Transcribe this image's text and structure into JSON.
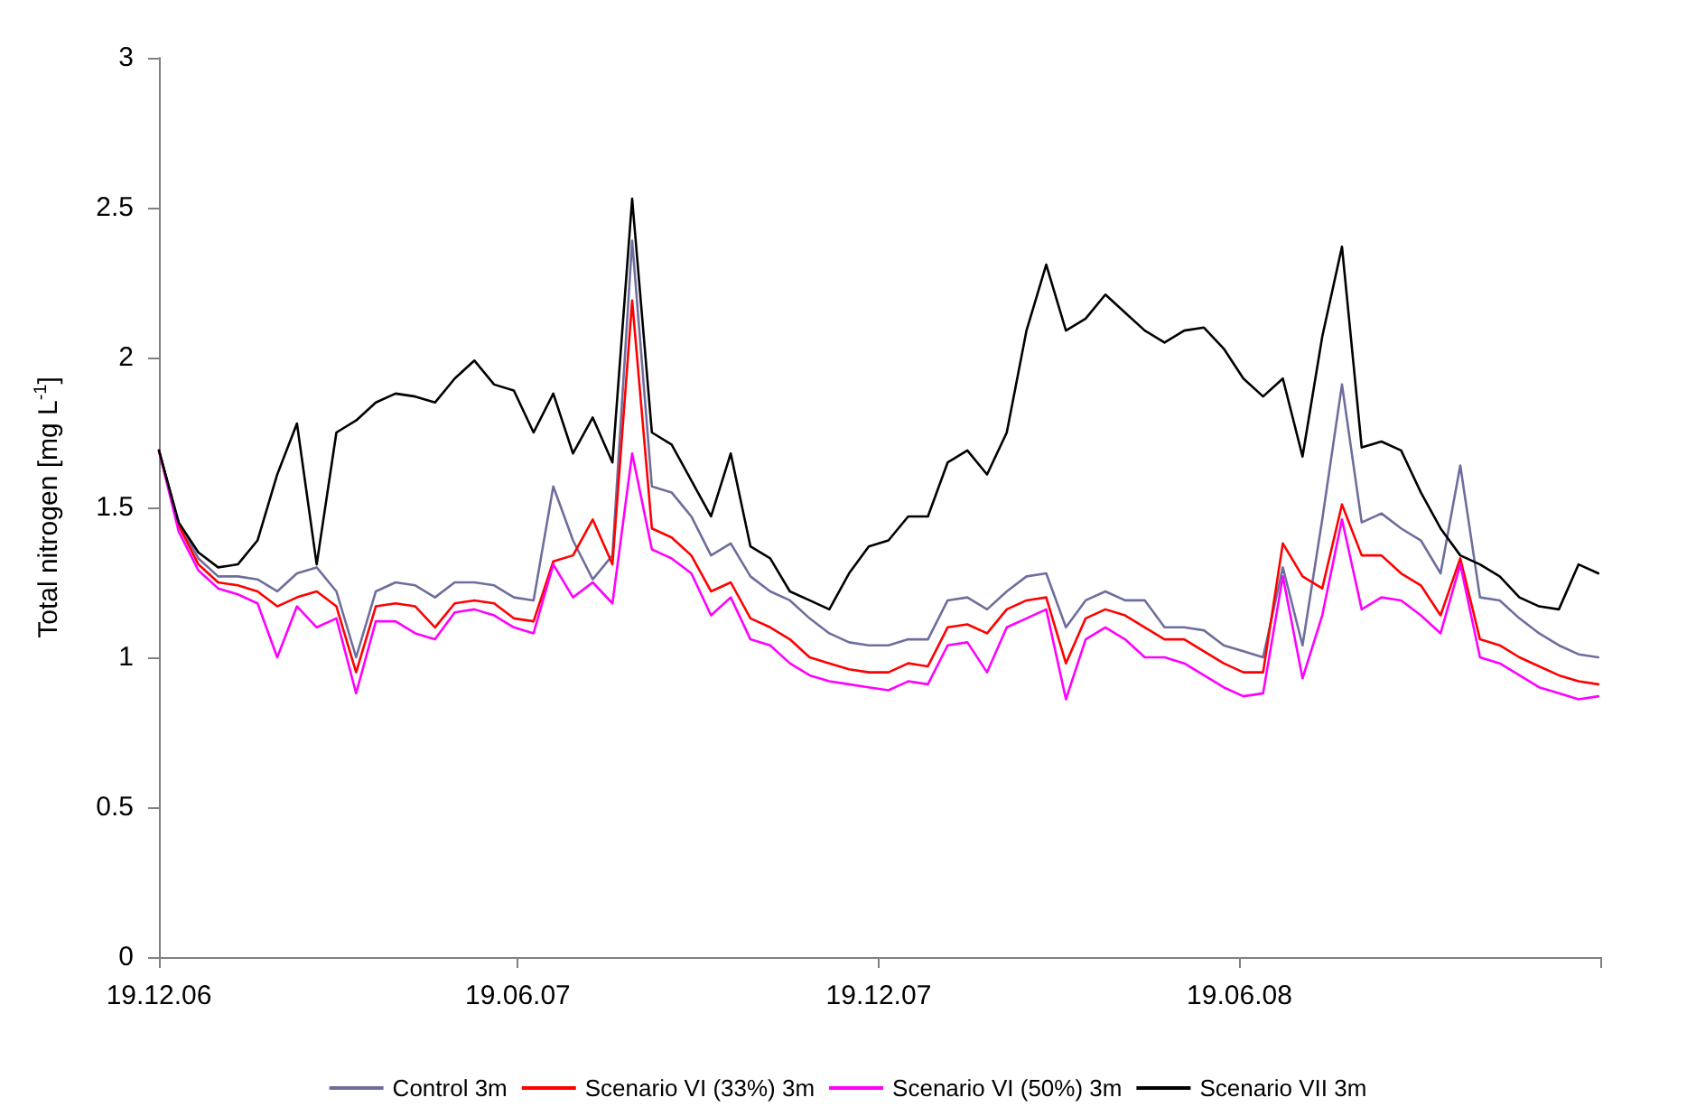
{
  "chart_data": {
    "type": "line",
    "ylabel": "Total nitrogen [mg L$^{-1}$]",
    "x": [
      "2006-12-19",
      "2006-12-29",
      "2007-01-08",
      "2007-01-18",
      "2007-01-28",
      "2007-02-07",
      "2007-02-17",
      "2007-02-27",
      "2007-03-09",
      "2007-03-19",
      "2007-03-29",
      "2007-04-08",
      "2007-04-18",
      "2007-04-28",
      "2007-05-08",
      "2007-05-18",
      "2007-05-28",
      "2007-06-07",
      "2007-06-17",
      "2007-06-27",
      "2007-07-07",
      "2007-07-17",
      "2007-07-27",
      "2007-08-06",
      "2007-08-16",
      "2007-08-26",
      "2007-09-05",
      "2007-09-15",
      "2007-09-25",
      "2007-10-05",
      "2007-10-15",
      "2007-10-25",
      "2007-11-04",
      "2007-11-14",
      "2007-11-24",
      "2007-12-04",
      "2007-12-14",
      "2007-12-24",
      "2008-01-03",
      "2008-01-13",
      "2008-01-23",
      "2008-02-02",
      "2008-02-12",
      "2008-02-22",
      "2008-03-03",
      "2008-03-13",
      "2008-03-23",
      "2008-04-02",
      "2008-04-12",
      "2008-04-22",
      "2008-05-02",
      "2008-05-12",
      "2008-05-22",
      "2008-06-01",
      "2008-06-11",
      "2008-06-21",
      "2008-07-01",
      "2008-07-11",
      "2008-07-21",
      "2008-07-31",
      "2008-08-10",
      "2008-08-20",
      "2008-08-30",
      "2008-09-09",
      "2008-09-19",
      "2008-09-29",
      "2008-10-09",
      "2008-10-19",
      "2008-10-29",
      "2008-11-08",
      "2008-11-18",
      "2008-11-28",
      "2008-12-08",
      "2008-12-18"
    ],
    "series": [
      {
        "name": "Control 3m",
        "color": "#6e6e9e",
        "values": [
          1.69,
          1.45,
          1.33,
          1.27,
          1.27,
          1.26,
          1.22,
          1.28,
          1.3,
          1.22,
          1.0,
          1.22,
          1.25,
          1.24,
          1.2,
          1.25,
          1.25,
          1.24,
          1.2,
          1.19,
          1.57,
          1.39,
          1.26,
          1.34,
          2.39,
          1.57,
          1.55,
          1.47,
          1.34,
          1.38,
          1.27,
          1.22,
          1.19,
          1.13,
          1.08,
          1.05,
          1.04,
          1.04,
          1.06,
          1.06,
          1.19,
          1.2,
          1.16,
          1.22,
          1.27,
          1.28,
          1.1,
          1.19,
          1.22,
          1.19,
          1.19,
          1.1,
          1.1,
          1.09,
          1.04,
          1.02,
          1.0,
          1.3,
          1.04,
          1.46,
          1.91,
          1.45,
          1.48,
          1.43,
          1.39,
          1.28,
          1.64,
          1.2,
          1.19,
          1.13,
          1.08,
          1.04,
          1.01,
          1.0
        ]
      },
      {
        "name": "Scenario VI (33%) 3m",
        "color": "#ff0000",
        "values": [
          1.69,
          1.44,
          1.31,
          1.25,
          1.24,
          1.22,
          1.17,
          1.2,
          1.22,
          1.17,
          0.95,
          1.17,
          1.18,
          1.17,
          1.1,
          1.18,
          1.19,
          1.18,
          1.13,
          1.12,
          1.32,
          1.34,
          1.46,
          1.31,
          2.19,
          1.43,
          1.4,
          1.34,
          1.22,
          1.25,
          1.13,
          1.1,
          1.06,
          1.0,
          0.98,
          0.96,
          0.95,
          0.95,
          0.98,
          0.97,
          1.1,
          1.11,
          1.08,
          1.16,
          1.19,
          1.2,
          0.98,
          1.13,
          1.16,
          1.14,
          1.1,
          1.06,
          1.06,
          1.02,
          0.98,
          0.95,
          0.95,
          1.38,
          1.27,
          1.23,
          1.51,
          1.34,
          1.34,
          1.28,
          1.24,
          1.14,
          1.33,
          1.06,
          1.04,
          1.0,
          0.97,
          0.94,
          0.92,
          0.91
        ]
      },
      {
        "name": "Scenario VI (50%) 3m",
        "color": "#ff00ff",
        "values": [
          1.69,
          1.42,
          1.29,
          1.23,
          1.21,
          1.18,
          1.0,
          1.17,
          1.1,
          1.13,
          0.88,
          1.12,
          1.12,
          1.08,
          1.06,
          1.15,
          1.16,
          1.14,
          1.1,
          1.08,
          1.31,
          1.2,
          1.25,
          1.18,
          1.68,
          1.36,
          1.33,
          1.28,
          1.14,
          1.2,
          1.06,
          1.04,
          0.98,
          0.94,
          0.92,
          0.91,
          0.9,
          0.89,
          0.92,
          0.91,
          1.04,
          1.05,
          0.95,
          1.1,
          1.13,
          1.16,
          0.86,
          1.06,
          1.1,
          1.06,
          1.0,
          1.0,
          0.98,
          0.94,
          0.9,
          0.87,
          0.88,
          1.27,
          0.93,
          1.14,
          1.46,
          1.16,
          1.2,
          1.19,
          1.14,
          1.08,
          1.31,
          1.0,
          0.98,
          0.94,
          0.9,
          0.88,
          0.86,
          0.87
        ]
      },
      {
        "name": "Scenario VII 3m",
        "color": "#000000",
        "values": [
          1.69,
          1.45,
          1.35,
          1.3,
          1.31,
          1.39,
          1.61,
          1.78,
          1.31,
          1.75,
          1.79,
          1.85,
          1.88,
          1.87,
          1.85,
          1.93,
          1.99,
          1.91,
          1.89,
          1.75,
          1.88,
          1.68,
          1.8,
          1.65,
          2.53,
          1.75,
          1.71,
          1.59,
          1.47,
          1.68,
          1.37,
          1.33,
          1.22,
          1.19,
          1.16,
          1.28,
          1.37,
          1.39,
          1.47,
          1.47,
          1.65,
          1.69,
          1.61,
          1.75,
          2.09,
          2.31,
          2.09,
          2.13,
          2.21,
          2.15,
          2.09,
          2.05,
          2.09,
          2.1,
          2.03,
          1.93,
          1.87,
          1.93,
          1.67,
          2.07,
          2.37,
          1.7,
          1.72,
          1.69,
          1.55,
          1.43,
          1.34,
          1.31,
          1.27,
          1.2,
          1.17,
          1.16,
          1.31,
          1.28
        ]
      }
    ],
    "xlim": [
      "2006-12-19",
      "2008-12-19"
    ],
    "xticks": [
      {
        "value": "2006-12-19",
        "label": "19.12.06"
      },
      {
        "value": "2007-06-19",
        "label": "19.06.07"
      },
      {
        "value": "2007-12-19",
        "label": "19.12.07"
      },
      {
        "value": "2008-06-19",
        "label": "19.06.08"
      },
      {
        "value": "2008-12-19",
        "label": null
      }
    ],
    "ylim": [
      0,
      3
    ],
    "yticks": [
      0,
      0.5,
      1,
      1.5,
      2,
      2.5,
      3
    ],
    "legend": "bottom",
    "marker": "none",
    "line_style": "solid"
  }
}
